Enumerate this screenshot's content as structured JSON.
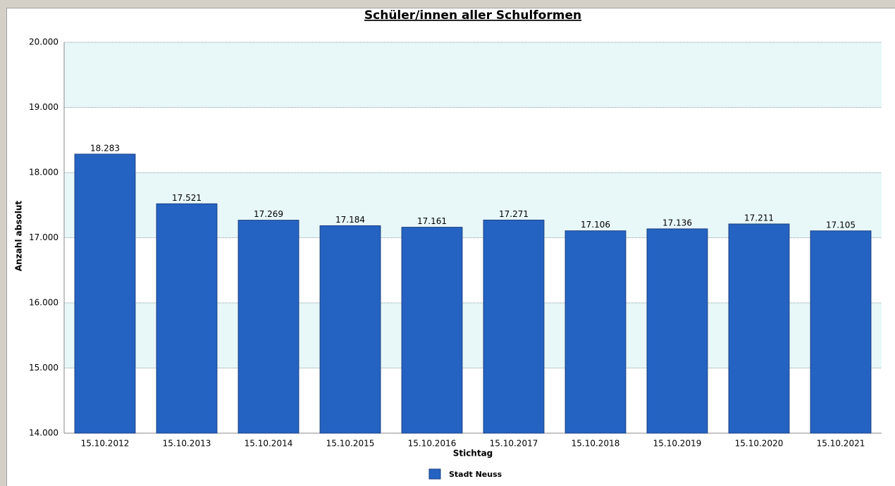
{
  "chart_data": {
    "type": "bar",
    "title": "Schüler/innen aller Schulformen",
    "x_label": "Stichtag",
    "y_label": "Anzahl absolut",
    "categories": [
      "15.10.2012",
      "15.10.2013",
      "15.10.2014",
      "15.10.2015",
      "15.10.2016",
      "15.10.2017",
      "15.10.2018",
      "15.10.2019",
      "15.10.2020",
      "15.10.2021"
    ],
    "series": [
      {
        "name": "Stadt Neuss",
        "color": "#2563c2",
        "values": [
          18283,
          17521,
          17269,
          17184,
          17161,
          17271,
          17106,
          17136,
          17211,
          17105
        ],
        "value_labels": [
          "18.283",
          "17.521",
          "17.269",
          "17.184",
          "17.161",
          "17.271",
          "17.106",
          "17.136",
          "17.211",
          "17.105"
        ]
      }
    ],
    "ylim": [
      14000,
      20000
    ],
    "yticks": [
      {
        "value": 14000,
        "label": "14.000"
      },
      {
        "value": 15000,
        "label": "15.000"
      },
      {
        "value": 16000,
        "label": "16.000"
      },
      {
        "value": 17000,
        "label": "17.000"
      },
      {
        "value": 18000,
        "label": "18.000"
      },
      {
        "value": 19000,
        "label": "19.000"
      },
      {
        "value": 20000,
        "label": "20.000"
      }
    ],
    "grid": true,
    "legend": "bottom"
  }
}
